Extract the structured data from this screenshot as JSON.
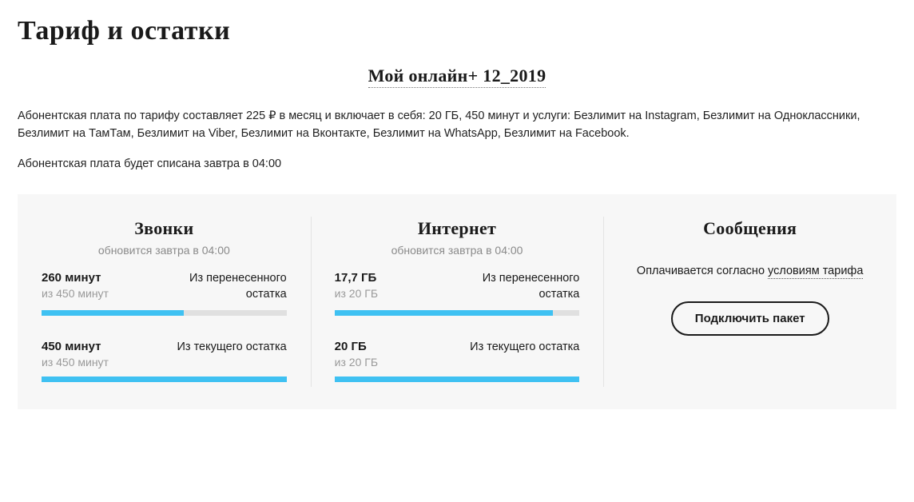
{
  "pageTitle": "Тариф и остатки",
  "tariffName": "Мой онлайн+ 12_2019",
  "description": "Абонентская плата по тарифу составляет 225 ₽ в месяц и включает в себя: 20 ГБ, 450 минут и услуги: Безлимит на Instagram, Безлимит на Одноклассники, Безлимит на ТамТам, Безлимит на Viber, Безлимит на Вконтакте, Безлимит на WhatsApp, Безлимит на Facebook.",
  "chargeInfo": "Абонентская плата будет списана завтра в 04:00",
  "calls": {
    "title": "Звонки",
    "subtitle": "обновится завтра в 04:00",
    "carried": {
      "amount": "260 минут",
      "total": "из 450 минут",
      "label": "Из перенесенного остатка",
      "percent": 58
    },
    "current": {
      "amount": "450 минут",
      "total": "из 450 минут",
      "label": "Из текущего остатка",
      "percent": 100
    }
  },
  "internet": {
    "title": "Интернет",
    "subtitle": "обновится завтра в 04:00",
    "carried": {
      "amount": "17,7 ГБ",
      "total": "из 20 ГБ",
      "label": "Из перенесенного остатка",
      "percent": 89
    },
    "current": {
      "amount": "20 ГБ",
      "total": "из 20 ГБ",
      "label": "Из текущего остатка",
      "percent": 100
    }
  },
  "messages": {
    "title": "Сообщения",
    "notePrefix": "Оплачивается согласно ",
    "noteLink": "условиям тарифа",
    "button": "Подключить пакет"
  },
  "colors": {
    "progressFill": "#3fc1f2",
    "progressBg": "#e0e0e0",
    "panelBg": "#f7f7f7"
  }
}
